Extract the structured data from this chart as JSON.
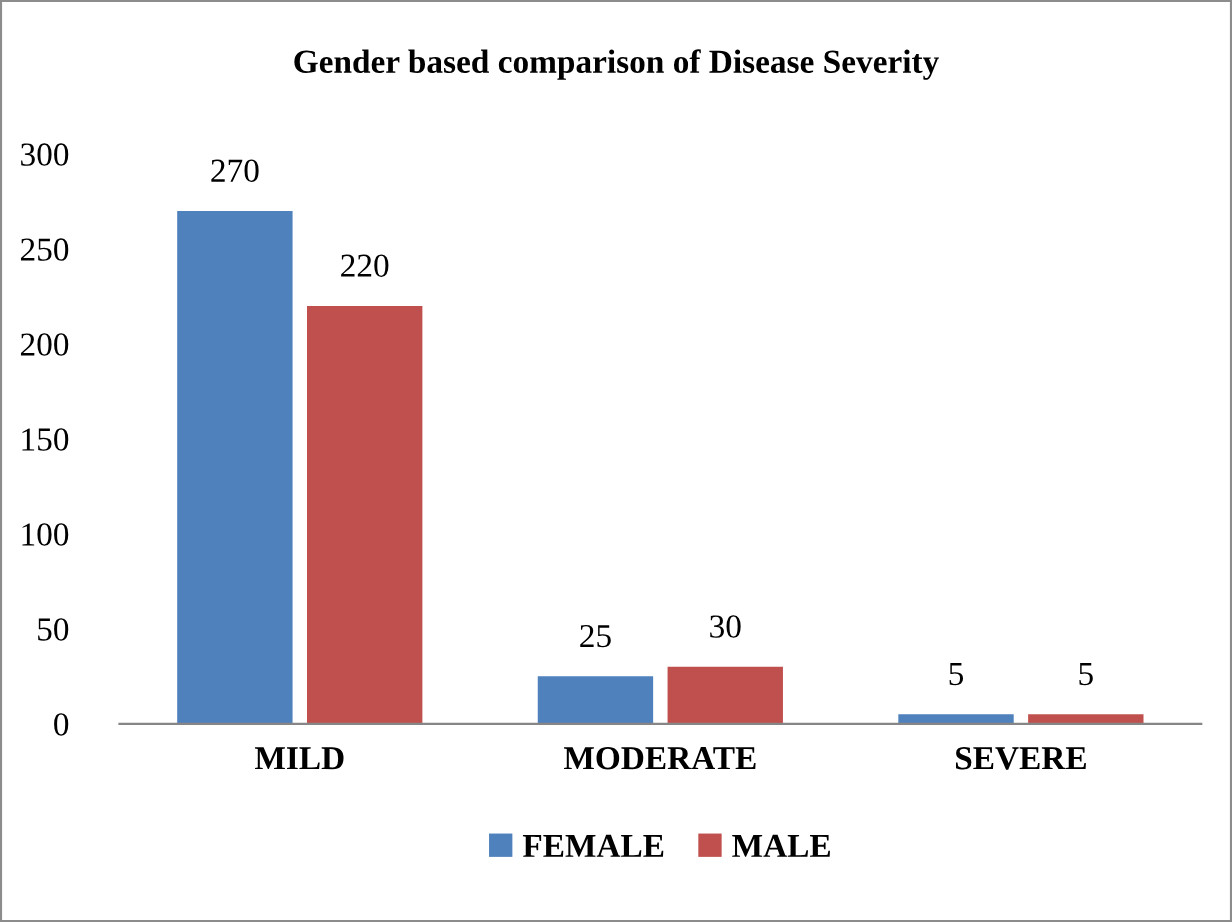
{
  "chart_data": {
    "type": "bar",
    "title": "Gender based comparison of Disease Severity",
    "categories": [
      "MILD",
      "MODERATE",
      "SEVERE"
    ],
    "series": [
      {
        "name": "FEMALE",
        "color": "#4f81bd",
        "values": [
          270,
          25,
          5
        ]
      },
      {
        "name": "MALE",
        "color": "#c0504d",
        "values": [
          220,
          30,
          5
        ]
      }
    ],
    "ylim": [
      0,
      300
    ],
    "yticks": [
      0,
      50,
      100,
      150,
      200,
      250,
      300
    ],
    "grid": false,
    "legend": "bottom",
    "data_labels": true
  }
}
